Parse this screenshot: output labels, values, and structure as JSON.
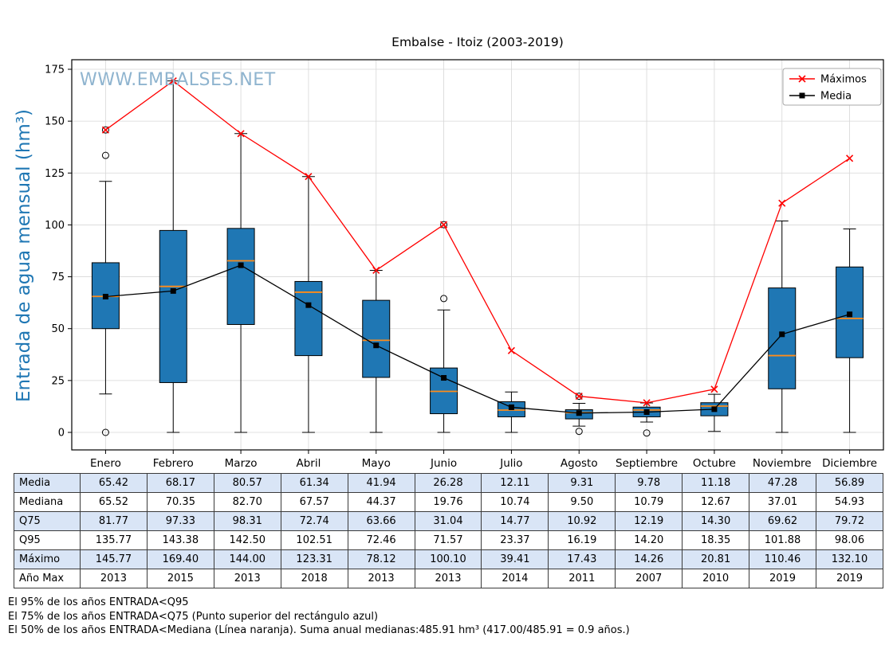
{
  "title": "Embalse - Itoiz (2003-2019)",
  "watermark": "WWW.EMBALSES.NET",
  "ylabel": "Entrada de agua mensual (hm³)",
  "legend": {
    "items": [
      "Máximos",
      "Media"
    ]
  },
  "chart_data": {
    "type": "boxplot",
    "title": "Embalse - Itoiz (2003-2019)",
    "ylabel": "Entrada de agua mensual (hm³)",
    "ylim": [
      -8.4,
      179.6
    ],
    "yticks": [
      0,
      25,
      50,
      75,
      100,
      125,
      150,
      175
    ],
    "grid": true,
    "legend_position": "top-right",
    "colors": {
      "box": "#1f77b4",
      "median": "#ff8c1a",
      "maximos": "#ff0000",
      "media": "#000000"
    },
    "categories": [
      "Enero",
      "Febrero",
      "Marzo",
      "Abril",
      "Mayo",
      "Junio",
      "Julio",
      "Agosto",
      "Septiembre",
      "Octubre",
      "Noviembre",
      "Diciembre"
    ],
    "boxes": [
      {
        "q1": 50.0,
        "median": 65.52,
        "q3": 81.77,
        "whislo": 18.5,
        "whishi": 121.0,
        "outliers": [
          0.0,
          133.5,
          145.77
        ]
      },
      {
        "q1": 24.0,
        "median": 70.35,
        "q3": 97.33,
        "whislo": 0.0,
        "whishi": 169.4,
        "outliers": []
      },
      {
        "q1": 52.0,
        "median": 82.7,
        "q3": 98.31,
        "whislo": 0.0,
        "whishi": 144.0,
        "outliers": []
      },
      {
        "q1": 37.0,
        "median": 67.57,
        "q3": 72.74,
        "whislo": 0.0,
        "whishi": 123.31,
        "outliers": []
      },
      {
        "q1": 26.5,
        "median": 44.37,
        "q3": 63.66,
        "whislo": 0.0,
        "whishi": 78.12,
        "outliers": []
      },
      {
        "q1": 9.0,
        "median": 19.76,
        "q3": 31.04,
        "whislo": 0.0,
        "whishi": 59.0,
        "outliers": [
          64.5,
          100.1
        ]
      },
      {
        "q1": 7.5,
        "median": 10.74,
        "q3": 14.77,
        "whislo": 0.0,
        "whishi": 19.5,
        "outliers": []
      },
      {
        "q1": 6.5,
        "median": 9.5,
        "q3": 10.92,
        "whislo": 3.0,
        "whishi": 14.0,
        "outliers": [
          0.5,
          17.43
        ]
      },
      {
        "q1": 7.5,
        "median": 10.79,
        "q3": 12.19,
        "whislo": 5.0,
        "whishi": 14.2,
        "outliers": [
          -0.3
        ]
      },
      {
        "q1": 8.0,
        "median": 12.67,
        "q3": 14.3,
        "whislo": 0.5,
        "whishi": 18.35,
        "outliers": []
      },
      {
        "q1": 21.0,
        "median": 37.01,
        "q3": 69.62,
        "whislo": 0.0,
        "whishi": 101.88,
        "outliers": []
      },
      {
        "q1": 36.0,
        "median": 54.93,
        "q3": 79.72,
        "whislo": 0.0,
        "whishi": 98.06,
        "outliers": []
      }
    ],
    "series": [
      {
        "name": "Máximos",
        "marker": "x",
        "color": "#ff0000",
        "values": [
          145.77,
          169.4,
          144.0,
          123.31,
          78.12,
          100.1,
          39.41,
          17.43,
          14.26,
          20.81,
          110.46,
          132.1
        ]
      },
      {
        "name": "Media",
        "marker": "square",
        "color": "#000000",
        "values": [
          65.42,
          68.17,
          80.57,
          61.34,
          41.94,
          26.28,
          12.11,
          9.31,
          9.78,
          11.18,
          47.28,
          56.89
        ]
      }
    ]
  },
  "table": {
    "rows": [
      {
        "label": "Media",
        "shaded": true,
        "values": [
          "65.42",
          "68.17",
          "80.57",
          "61.34",
          "41.94",
          "26.28",
          "12.11",
          "9.31",
          "9.78",
          "11.18",
          "47.28",
          "56.89"
        ]
      },
      {
        "label": "Mediana",
        "shaded": false,
        "values": [
          "65.52",
          "70.35",
          "82.70",
          "67.57",
          "44.37",
          "19.76",
          "10.74",
          "9.50",
          "10.79",
          "12.67",
          "37.01",
          "54.93"
        ]
      },
      {
        "label": "Q75",
        "shaded": true,
        "values": [
          "81.77",
          "97.33",
          "98.31",
          "72.74",
          "63.66",
          "31.04",
          "14.77",
          "10.92",
          "12.19",
          "14.30",
          "69.62",
          "79.72"
        ]
      },
      {
        "label": "Q95",
        "shaded": false,
        "values": [
          "135.77",
          "143.38",
          "142.50",
          "102.51",
          "72.46",
          "71.57",
          "23.37",
          "16.19",
          "14.20",
          "18.35",
          "101.88",
          "98.06"
        ]
      },
      {
        "label": "Máximo",
        "shaded": true,
        "values": [
          "145.77",
          "169.40",
          "144.00",
          "123.31",
          "78.12",
          "100.10",
          "39.41",
          "17.43",
          "14.26",
          "20.81",
          "110.46",
          "132.10"
        ]
      },
      {
        "label": "Año Max",
        "shaded": false,
        "values": [
          "2013",
          "2015",
          "2013",
          "2018",
          "2013",
          "2013",
          "2014",
          "2011",
          "2007",
          "2010",
          "2019",
          "2019"
        ]
      }
    ]
  },
  "footnotes": [
    "El 95% de los años ENTRADA<Q95",
    "El 75% de los años ENTRADA<Q75 (Punto superior del rectángulo azul)",
    "El 50% de los años ENTRADA<Mediana (Línea naranja). Suma anual medianas:485.91 hm³ (417.00/485.91 = 0.9 años.)"
  ]
}
